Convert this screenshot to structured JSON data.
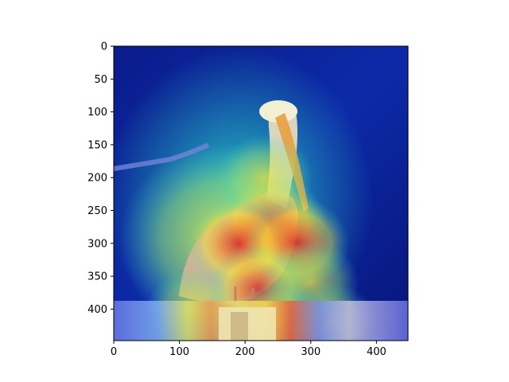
{
  "chart_data": {
    "type": "heatmap",
    "title": "",
    "xlabel": "",
    "ylabel": "",
    "xlim": [
      0,
      448
    ],
    "ylim": [
      448,
      0
    ],
    "x_ticks": [
      0,
      100,
      200,
      300,
      400
    ],
    "y_ticks": [
      0,
      50,
      100,
      150,
      200,
      250,
      300,
      350,
      400
    ],
    "image_description": "Photograph of a brown pelican perched on a post, overlaid with a jet-colormap attention heatmap (blue = low, red = high).",
    "colormap": "jet",
    "heatmap_hotspots": [
      {
        "x": 240,
        "y": 270,
        "intensity": 1.0
      },
      {
        "x": 190,
        "y": 300,
        "intensity": 0.85
      },
      {
        "x": 280,
        "y": 300,
        "intensity": 0.85
      },
      {
        "x": 230,
        "y": 200,
        "intensity": 0.7
      },
      {
        "x": 220,
        "y": 370,
        "intensity": 0.8
      },
      {
        "x": 300,
        "y": 360,
        "intensity": 0.7
      },
      {
        "x": 120,
        "y": 400,
        "intensity": 0.6
      },
      {
        "x": 250,
        "y": 420,
        "intensity": 0.65
      },
      {
        "x": 330,
        "y": 420,
        "intensity": 0.55
      }
    ],
    "colors": {
      "background_dark": "#0a1a8a",
      "overlay_low": "#1f2fd0",
      "overlay_mid": "#3fd0c0",
      "overlay_high": "#f5e23a",
      "overlay_peak": "#d81f2a",
      "pelican_body": "#d9b59a",
      "pelican_head": "#f3efd2",
      "beak": "#e8a040",
      "post": "#efe3b0",
      "axis": "#000000"
    }
  }
}
